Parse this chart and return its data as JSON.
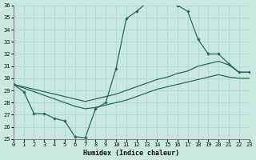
{
  "xlabel": "Humidex (Indice chaleur)",
  "xlim": [
    0,
    23
  ],
  "ylim": [
    25,
    36
  ],
  "xticks": [
    0,
    1,
    2,
    3,
    4,
    5,
    6,
    7,
    8,
    9,
    10,
    11,
    12,
    13,
    14,
    15,
    16,
    17,
    18,
    19,
    20,
    21,
    22,
    23
  ],
  "yticks": [
    25,
    26,
    27,
    28,
    29,
    30,
    31,
    32,
    33,
    34,
    35,
    36
  ],
  "bg_color": "#c8e8e0",
  "grid_color": "#b0d8d0",
  "line_color": "#2a6858",
  "curve1_x": [
    0,
    1,
    2,
    3,
    4,
    5,
    6,
    7,
    8,
    9,
    10,
    11,
    12,
    13,
    14,
    15,
    16,
    17,
    18,
    19,
    20,
    21,
    22,
    23
  ],
  "curve1_y": [
    29.5,
    28.9,
    27.1,
    27.1,
    26.7,
    26.5,
    25.2,
    25.1,
    27.5,
    28.0,
    30.8,
    34.9,
    35.5,
    36.2,
    36.5,
    36.5,
    36.0,
    35.5,
    33.2,
    32.0,
    32.0,
    31.2,
    30.5,
    30.5
  ],
  "curve2_x": [
    0,
    1,
    2,
    3,
    4,
    5,
    6,
    7,
    8,
    9,
    10,
    11,
    12,
    13,
    14,
    15,
    16,
    17,
    18,
    19,
    20,
    21,
    22,
    23
  ],
  "curve2_y": [
    29.5,
    29.3,
    29.1,
    28.9,
    28.7,
    28.5,
    28.3,
    28.1,
    28.3,
    28.5,
    28.7,
    29.0,
    29.3,
    29.6,
    29.9,
    30.1,
    30.4,
    30.6,
    31.0,
    31.2,
    31.4,
    31.1,
    30.5,
    30.5
  ],
  "curve3_x": [
    0,
    1,
    2,
    3,
    4,
    5,
    6,
    7,
    8,
    9,
    10,
    11,
    12,
    13,
    14,
    15,
    16,
    17,
    18,
    19,
    20,
    21,
    22,
    23
  ],
  "curve3_y": [
    29.5,
    29.2,
    28.9,
    28.6,
    28.3,
    28.0,
    27.7,
    27.5,
    27.6,
    27.8,
    28.0,
    28.2,
    28.5,
    28.8,
    29.1,
    29.3,
    29.5,
    29.7,
    29.9,
    30.1,
    30.3,
    30.1,
    30.0,
    30.0
  ]
}
